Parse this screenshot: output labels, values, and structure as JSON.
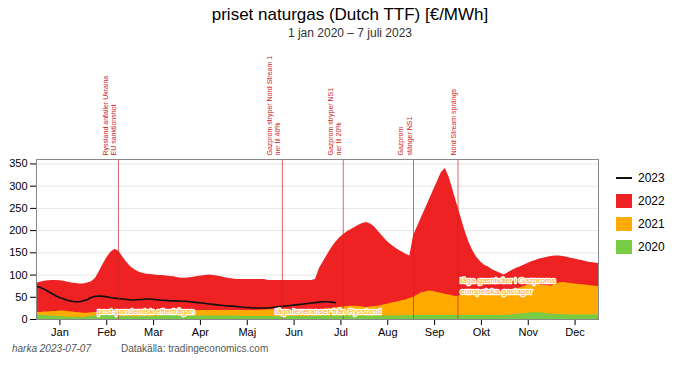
{
  "chart_data": {
    "type": "area",
    "title": "priset naturgas (Dutch TTF) [€/MWh]",
    "subtitle": "1 jan 2020 – 7 juli 2023",
    "footer_left": "harka 2023-07-07",
    "footer_right": "Datakälla: tradingeconomics.com",
    "x": [
      0,
      0.0839,
      0.1678,
      0.2517,
      0.3357,
      0.4196,
      0.5035,
      0.5874,
      0.6713,
      0.7552,
      0.8392,
      0.9231,
      1.007,
      1.0909,
      1.1748,
      1.2587,
      1.3427,
      1.4266,
      1.5105,
      1.5944,
      1.6783,
      1.7622,
      1.8462,
      1.9301,
      2.014,
      2.0979,
      2.1818,
      2.2657,
      2.3497,
      2.4336,
      2.5175,
      2.6014,
      2.6853,
      2.7692,
      2.8531,
      2.9371,
      3.021,
      3.1049,
      3.1888,
      3.2727,
      3.3566,
      3.4406,
      3.5245,
      3.6084,
      3.6923,
      3.7762,
      3.8601,
      3.9441,
      4.028,
      4.1119,
      4.1958,
      4.2797,
      4.3636,
      4.4476,
      4.5315,
      4.6154,
      4.6993,
      4.7832,
      4.8671,
      4.951,
      5.035,
      5.1189,
      5.2028,
      5.2867,
      5.3706,
      5.4545,
      5.5385,
      5.6224,
      5.7063,
      5.7902,
      5.8741,
      5.958,
      6.042,
      6.1259,
      6.2098,
      6.2937,
      6.3776,
      6.4615,
      6.5455,
      6.6294,
      6.7133,
      6.7972,
      6.8811,
      6.965,
      7.049,
      7.1329,
      7.2168,
      7.3007,
      7.3846,
      7.4685,
      7.5524,
      7.6364,
      7.7203,
      7.8042,
      7.8881,
      7.972,
      8.0559,
      8.1399,
      8.2238,
      8.3077,
      8.3916,
      8.4755,
      8.5594,
      8.6434,
      8.7273,
      8.8112,
      8.8951,
      8.979,
      9.0629,
      9.1469,
      9.2308,
      9.3147,
      9.3986,
      9.4825,
      9.5664,
      9.6503,
      9.7343,
      9.8182,
      9.9021,
      9.986,
      10.0699,
      10.1538,
      10.2378,
      10.3217,
      10.4056,
      10.4895,
      10.5734,
      10.6573,
      10.7413,
      10.8252,
      10.9091,
      10.993,
      11.0769,
      11.1608,
      11.2448,
      11.3287,
      11.4126,
      11.4965,
      11.5804,
      11.6643,
      11.7483,
      11.8322,
      11.9161,
      12
    ],
    "series": [
      {
        "name": "2023",
        "type": "line",
        "color": "#111111",
        "values": [
          75,
          72,
          68,
          63,
          58,
          53,
          49,
          46,
          43,
          41,
          40,
          40,
          42,
          45,
          50,
          52,
          53,
          52,
          51,
          49,
          48,
          47,
          46,
          45,
          44,
          44,
          45,
          45,
          46,
          46,
          45,
          44,
          43,
          43,
          42,
          42,
          42,
          41,
          41,
          40,
          39,
          38,
          37,
          36,
          35,
          34,
          33,
          32,
          31,
          30,
          30,
          29,
          28,
          27,
          27,
          26,
          26,
          26,
          26,
          26,
          27,
          28,
          29,
          30,
          31,
          32,
          33,
          34,
          35,
          36,
          37,
          38,
          39,
          40,
          40,
          39,
          38,
          null,
          null,
          null,
          null,
          null,
          null,
          null,
          null,
          null,
          null,
          null,
          null,
          null,
          null,
          null,
          null,
          null,
          null,
          null,
          null,
          null,
          null,
          null,
          null,
          null,
          null,
          null,
          null,
          null,
          null,
          null,
          null,
          null,
          null,
          null,
          null,
          null,
          null,
          null,
          null,
          null,
          null,
          null,
          null,
          null,
          null,
          null,
          null,
          null,
          null,
          null,
          null,
          null,
          null,
          null,
          null,
          null,
          null,
          null,
          null,
          null,
          null,
          null,
          null,
          null,
          null,
          null
        ]
      },
      {
        "name": "2022",
        "type": "area",
        "color": "#ee2222",
        "values": [
          82,
          84,
          86,
          87,
          88,
          88,
          87,
          86,
          84,
          82,
          81,
          80,
          80,
          82,
          85,
          92,
          108,
          125,
          140,
          152,
          158,
          153,
          140,
          128,
          118,
          112,
          107,
          104,
          102,
          101,
          100,
          99,
          99,
          98,
          97,
          96,
          94,
          93,
          93,
          94,
          95,
          97,
          98,
          99,
          100,
          99,
          98,
          96,
          94,
          92,
          91,
          90,
          90,
          90,
          90,
          90,
          90,
          90,
          90,
          88,
          88,
          88,
          88,
          88,
          88,
          88,
          88,
          88,
          88,
          88,
          88,
          90,
          115,
          130,
          145,
          160,
          172,
          182,
          190,
          197,
          202,
          207,
          212,
          216,
          218,
          215,
          208,
          198,
          188,
          178,
          170,
          163,
          157,
          152,
          147,
          143,
          190,
          210,
          230,
          250,
          270,
          290,
          310,
          330,
          340,
          320,
          290,
          260,
          230,
          200,
          175,
          155,
          140,
          130,
          122,
          118,
          112,
          108,
          104,
          100,
          105,
          110,
          115,
          118,
          122,
          126,
          130,
          133,
          136,
          138,
          140,
          142,
          143,
          143,
          142,
          140,
          138,
          136,
          134,
          132,
          130,
          128,
          127,
          126
        ]
      },
      {
        "name": "2021",
        "type": "area",
        "color": "#ffaa00",
        "values": [
          16,
          16,
          17,
          17,
          18,
          18,
          19,
          19,
          18,
          17,
          16,
          15,
          14,
          14,
          15,
          16,
          17,
          18,
          19,
          20,
          21,
          22,
          22,
          21,
          20,
          20,
          19,
          19,
          18,
          18,
          18,
          18,
          19,
          19,
          20,
          20,
          20,
          20,
          20,
          20,
          20,
          20,
          20,
          20,
          20,
          20,
          20,
          20,
          20,
          20,
          20,
          20,
          20,
          20,
          20,
          20,
          20,
          21,
          21,
          22,
          22,
          22,
          22,
          22,
          21,
          20,
          20,
          20,
          20,
          21,
          21,
          22,
          22,
          23,
          24,
          25,
          26,
          27,
          28,
          29,
          30,
          30,
          29,
          28,
          27,
          28,
          29,
          30,
          32,
          34,
          36,
          38,
          40,
          42,
          44,
          47,
          50,
          55,
          60,
          62,
          64,
          63,
          61,
          59,
          57,
          55,
          53,
          51,
          55,
          58,
          60,
          62,
          63,
          64,
          65,
          65,
          64,
          63,
          62,
          61,
          62,
          65,
          68,
          71,
          74,
          77,
          78,
          79,
          78,
          77,
          76,
          75,
          80,
          82,
          83,
          82,
          81,
          80,
          79,
          78,
          77,
          76,
          75,
          74
        ]
      },
      {
        "name": "2020",
        "type": "area",
        "color": "#77cc44",
        "values": [
          10,
          9,
          9,
          8,
          8,
          7,
          7,
          6,
          5,
          5,
          5,
          4,
          5,
          6,
          7,
          8,
          9,
          10,
          10,
          9,
          8,
          8,
          7,
          7,
          6,
          6,
          6,
          7,
          7,
          7,
          7,
          8,
          8,
          9,
          9,
          9,
          8,
          8,
          8,
          8,
          8,
          8,
          8,
          8,
          8,
          8,
          8,
          8,
          8,
          8,
          8,
          8,
          7,
          7,
          7,
          7,
          7,
          7,
          7,
          7,
          7,
          7,
          7,
          7,
          7,
          7,
          7,
          7,
          7,
          7,
          7,
          8,
          8,
          8,
          8,
          8,
          8,
          8,
          8,
          8,
          8,
          8,
          8,
          8,
          8,
          8,
          8,
          8,
          8,
          8,
          8,
          8,
          8,
          8,
          9,
          9,
          9,
          9,
          9,
          9,
          9,
          9,
          9,
          9,
          9,
          9,
          9,
          9,
          9,
          9,
          9,
          9,
          9,
          9,
          9,
          9,
          9,
          9,
          9,
          9,
          10,
          10,
          11,
          12,
          13,
          14,
          15,
          15,
          15,
          14,
          13,
          12,
          11,
          11,
          11,
          10,
          10,
          10,
          10,
          10,
          10,
          10,
          10,
          10
        ]
      }
    ],
    "xlim": [
      0,
      12
    ],
    "xticks": [
      {
        "value": 0.5,
        "label": "Jan"
      },
      {
        "value": 1.5,
        "label": "Feb"
      },
      {
        "value": 2.5,
        "label": "Mar"
      },
      {
        "value": 3.5,
        "label": "Apr"
      },
      {
        "value": 4.5,
        "label": "Maj"
      },
      {
        "value": 5.5,
        "label": "Jun"
      },
      {
        "value": 6.5,
        "label": "Jul"
      },
      {
        "value": 7.5,
        "label": "Aug"
      },
      {
        "value": 8.5,
        "label": "Sep"
      },
      {
        "value": 9.5,
        "label": "Okt"
      },
      {
        "value": 10.5,
        "label": "Nov"
      },
      {
        "value": 11.5,
        "label": "Dec"
      }
    ],
    "ylim": [
      0,
      360
    ],
    "yticks": [
      0,
      50,
      100,
      150,
      200,
      250,
      300,
      350
    ],
    "grid": "y",
    "legend": "right",
    "event_lines": [
      {
        "x": 1.75,
        "text": "Ryssland anfaller Ukraina\nEU sanktionshot",
        "color": "#cc2222"
      },
      {
        "x": 5.25,
        "text": "Gazprom stryper Nord Stream 1\nner til 40%",
        "color": "#cc2222"
      },
      {
        "x": 6.55,
        "text": "Gazprom stryper NS1\nner til 20%",
        "color": "#cc2222"
      },
      {
        "x": 8.05,
        "text": "Gazprom\nstänger NS1",
        "color": "#cc2222"
      },
      {
        "x": 9.0,
        "text": "Nord Stream sprängs",
        "color": "#cc2222"
      }
    ],
    "annotations": [
      {
        "text": "post-pandemisk efterfrågan",
        "x": 1.3,
        "y": 13,
        "color": "#ffaa00"
      },
      {
        "text": "låga leveranser från Ryssland",
        "x": 5.1,
        "y": 13,
        "color": "#ffaa00"
      },
      {
        "text": "låga gasnivåer i Gazproms\neuropeiska gaslager",
        "x": 9.05,
        "y": 58,
        "color": "#ffaa00"
      }
    ]
  }
}
